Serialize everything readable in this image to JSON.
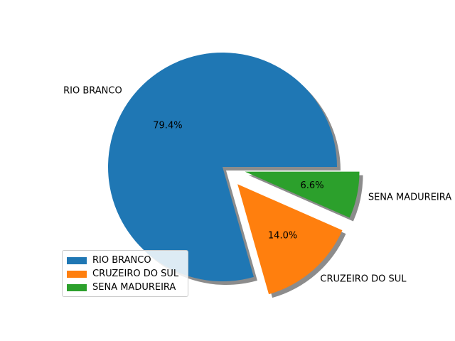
{
  "chart_data": {
    "type": "pie",
    "title": "",
    "start_angle_deg": 0,
    "direction": "counterclockwise",
    "shadow": true,
    "legend_placement": "lower-left",
    "slices": [
      {
        "label": "RIO BRANCO",
        "pct": 79.4,
        "pct_label": "79.4%",
        "color": "#1f77b4",
        "explode": 0
      },
      {
        "label": "CRUZEIRO DO SUL",
        "pct": 14.0,
        "pct_label": "14.0%",
        "color": "#ff7f0e",
        "explode": 0.2
      },
      {
        "label": "SENA MADUREIRA",
        "pct": 6.6,
        "pct_label": "6.6%",
        "color": "#2ca02c",
        "explode": 0.2
      }
    ]
  }
}
